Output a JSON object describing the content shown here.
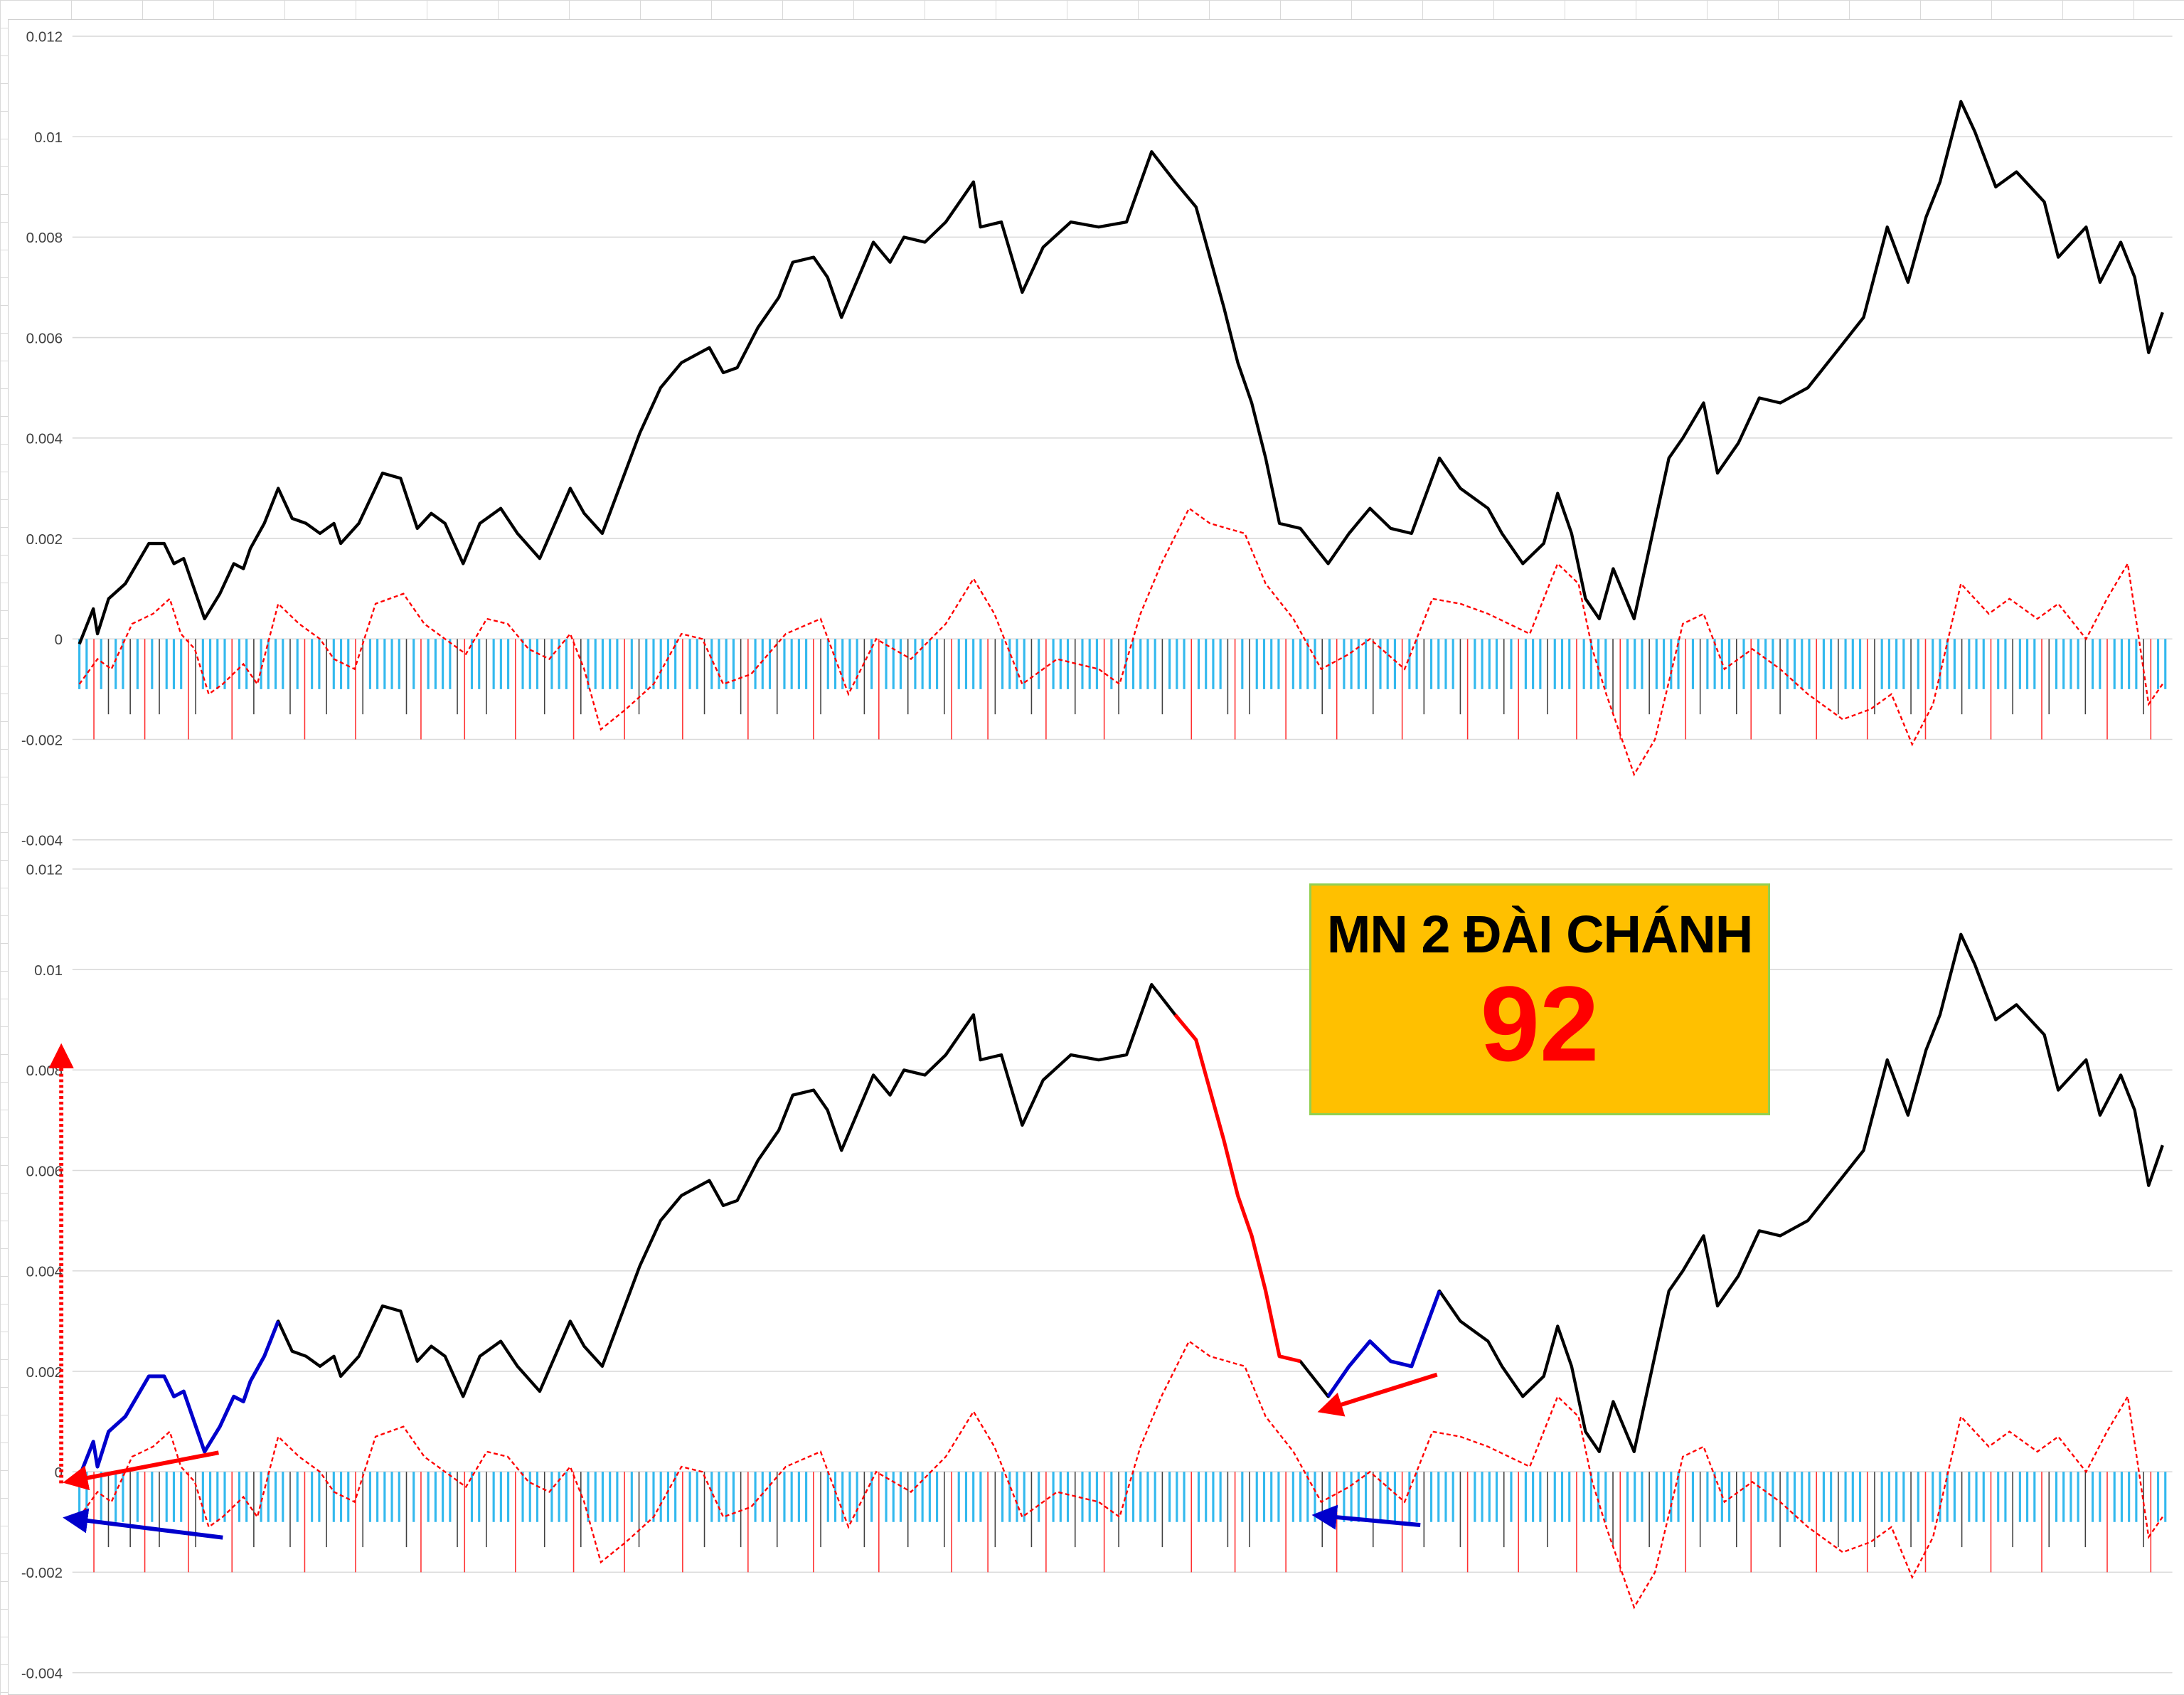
{
  "label_box": {
    "title": "MN 2 ĐÀI CHÁNH",
    "number": "92",
    "background": "#ffc000",
    "border": "#92d050",
    "number_color": "#ff0000"
  },
  "chart_data": [
    {
      "type": "line",
      "title": "",
      "xlabel": "",
      "ylabel": "",
      "ylim": [
        -0.004,
        0.012
      ],
      "xlim": [
        0,
        1500
      ],
      "grid": true,
      "y_ticks": [
        "0.012",
        "0.01",
        "0.008",
        "0.006",
        "0.004",
        "0.002",
        "0",
        "-0.002",
        "-0.004"
      ],
      "series_ref": "shared"
    },
    {
      "type": "line",
      "title": "",
      "xlabel": "",
      "ylabel": "",
      "ylim": [
        -0.004,
        0.012
      ],
      "xlim": [
        0,
        1500
      ],
      "grid": true,
      "y_ticks": [
        "0.012",
        "0.01",
        "0.008",
        "0.006",
        "0.004",
        "0.002",
        "0",
        "-0.002",
        "-0.004"
      ],
      "series_ref": "shared",
      "highlights": [
        {
          "x_range": [
            0,
            148
          ],
          "color": "#0000cc"
        },
        {
          "x_range": [
            788,
            893
          ],
          "color": "#ff0000"
        },
        {
          "x_range": [
            893,
            978
          ],
          "color": "#0000cc"
        }
      ],
      "annotations": [
        "red-arrow",
        "blue-arrow",
        "red-arrow",
        "blue-arrow",
        "red-dotted-up-arrow"
      ]
    }
  ],
  "shared_series": {
    "main": {
      "color": "#000000",
      "style": "solid",
      "x": [
        0,
        10,
        13,
        21,
        33,
        50,
        61,
        68,
        75,
        90,
        101,
        111,
        118,
        123,
        133,
        143,
        153,
        163,
        173,
        183,
        188,
        201,
        218,
        231,
        243,
        253,
        263,
        276,
        288,
        303,
        315,
        331,
        353,
        363,
        376,
        403,
        418,
        433,
        453,
        463,
        473,
        488,
        503,
        513,
        528,
        538,
        548,
        571,
        583,
        593,
        608,
        623,
        643,
        648,
        663,
        678,
        693,
        713,
        733,
        753,
        771,
        788,
        803,
        813,
        823,
        833,
        843,
        853,
        863,
        878,
        898,
        913,
        928,
        943,
        958,
        978,
        993,
        1013,
        1023,
        1038,
        1053,
        1063,
        1073,
        1083,
        1093,
        1103,
        1118,
        1143,
        1153,
        1168,
        1178,
        1193,
        1208,
        1223,
        1243,
        1263,
        1283,
        1300,
        1315,
        1328,
        1338,
        1353,
        1363,
        1378,
        1393,
        1413,
        1423,
        1443,
        1453,
        1468,
        1478,
        1488,
        1498
      ],
      "y": [
        -0.0001,
        0.0006,
        0.0001,
        0.0008,
        0.0011,
        0.0019,
        0.0019,
        0.0015,
        0.0016,
        0.0004,
        0.0009,
        0.0015,
        0.0014,
        0.0018,
        0.0023,
        0.003,
        0.0024,
        0.0023,
        0.0021,
        0.0023,
        0.0019,
        0.0023,
        0.0033,
        0.0032,
        0.0022,
        0.0025,
        0.0023,
        0.0015,
        0.0023,
        0.0026,
        0.0021,
        0.0016,
        0.003,
        0.0025,
        0.0021,
        0.0041,
        0.005,
        0.0055,
        0.0058,
        0.0053,
        0.0054,
        0.0062,
        0.0068,
        0.0075,
        0.0076,
        0.0072,
        0.0064,
        0.0079,
        0.0075,
        0.008,
        0.0079,
        0.0083,
        0.0091,
        0.0082,
        0.0083,
        0.0069,
        0.0078,
        0.0083,
        0.0082,
        0.0083,
        0.0097,
        0.0091,
        0.0086,
        0.0076,
        0.0066,
        0.0055,
        0.0047,
        0.0036,
        0.0023,
        0.0022,
        0.0015,
        0.0021,
        0.0026,
        0.0022,
        0.0021,
        0.0036,
        0.003,
        0.0026,
        0.0021,
        0.0015,
        0.0019,
        0.0029,
        0.0021,
        0.0008,
        0.0004,
        0.0014,
        0.0004,
        0.0036,
        0.004,
        0.0047,
        0.0033,
        0.0039,
        0.0048,
        0.0047,
        0.005,
        0.0057,
        0.0064,
        0.0082,
        0.0071,
        0.0084,
        0.0091,
        0.0107,
        0.0101,
        0.009,
        0.0093,
        0.0087,
        0.0076,
        0.0082,
        0.0071,
        0.0079,
        0.0072,
        0.0057,
        0.0065
      ]
    },
    "secondary": {
      "color": "#ff0000",
      "style": "dashed",
      "x": [
        0,
        13,
        23,
        38,
        53,
        65,
        73,
        83,
        93,
        103,
        118,
        128,
        143,
        158,
        173,
        183,
        198,
        213,
        233,
        248,
        263,
        278,
        293,
        308,
        323,
        338,
        353,
        363,
        375,
        393,
        413,
        433,
        448,
        463,
        483,
        508,
        533,
        553,
        573,
        598,
        623,
        643,
        658,
        678,
        703,
        733,
        748,
        763,
        778,
        798,
        813,
        838,
        853,
        873,
        893,
        913,
        928,
        953,
        973,
        993,
        1013,
        1028,
        1043,
        1063,
        1078,
        1088,
        1098,
        1118,
        1133,
        1153,
        1168,
        1183,
        1203,
        1223,
        1243,
        1268,
        1288,
        1303,
        1318,
        1333,
        1353,
        1373,
        1388,
        1408,
        1423,
        1443,
        1458,
        1473,
        1488,
        1498
      ],
      "y": [
        -0.0009,
        -0.0004,
        -0.0006,
        0.0003,
        0.0005,
        0.0008,
        0.0001,
        -0.0002,
        -0.0011,
        -0.0009,
        -0.0005,
        -0.0009,
        0.0007,
        0.0003,
        0,
        -0.0004,
        -0.0006,
        0.0007,
        0.0009,
        0.0003,
        0,
        -0.0003,
        0.0004,
        0.0003,
        -0.0002,
        -0.0004,
        0.0001,
        -0.0006,
        -0.0018,
        -0.0014,
        -0.0009,
        0.0001,
        0,
        -0.0009,
        -0.0007,
        0.0001,
        0.0004,
        -0.0011,
        0,
        -0.0004,
        0.0003,
        0.0012,
        0.0005,
        -0.0009,
        -0.0004,
        -0.0006,
        -0.0009,
        0.0005,
        0.0015,
        0.0026,
        0.0023,
        0.0021,
        0.0011,
        0.0004,
        -0.0006,
        -0.0003,
        0,
        -0.0006,
        0.0008,
        0.0007,
        0.0005,
        0.0003,
        0.0001,
        0.0015,
        0.0011,
        -0.0002,
        -0.0011,
        -0.0027,
        -0.002,
        0.0003,
        0.0005,
        -0.0006,
        -0.0002,
        -0.0006,
        -0.0011,
        -0.0016,
        -0.0014,
        -0.0011,
        -0.0021,
        -0.0013,
        0.0011,
        0.0005,
        0.0008,
        0.0004,
        0.0007,
        0,
        0.0008,
        0.0015,
        -0.0013,
        -0.0009
      ]
    },
    "bars": {
      "levels": {
        "c": -0.001,
        "k": -0.0015,
        "r": -0.002
      },
      "colors": {
        "c": "#33b9ee",
        "k": "#404040",
        "r": "#ff3030"
      },
      "pattern": "ccrckcckcrckcccrkccccrcckcccckcrcckcccrkccccckcrcccckrcckcccrccckcccrkcccccrckcccccrcckcccckrccckccccrkccccckcrccckcccckrccccrkcccckcrccckcccrckccccckcccrcccckrckccccrcccckcrcccckcccrcckcccckrcccckcrccckcccrcccckrccckccccrckcccckcrccckccccrcckcccrkcccckcrcccckcccrcckcccrkcccckccrcccckrcc"
    }
  }
}
